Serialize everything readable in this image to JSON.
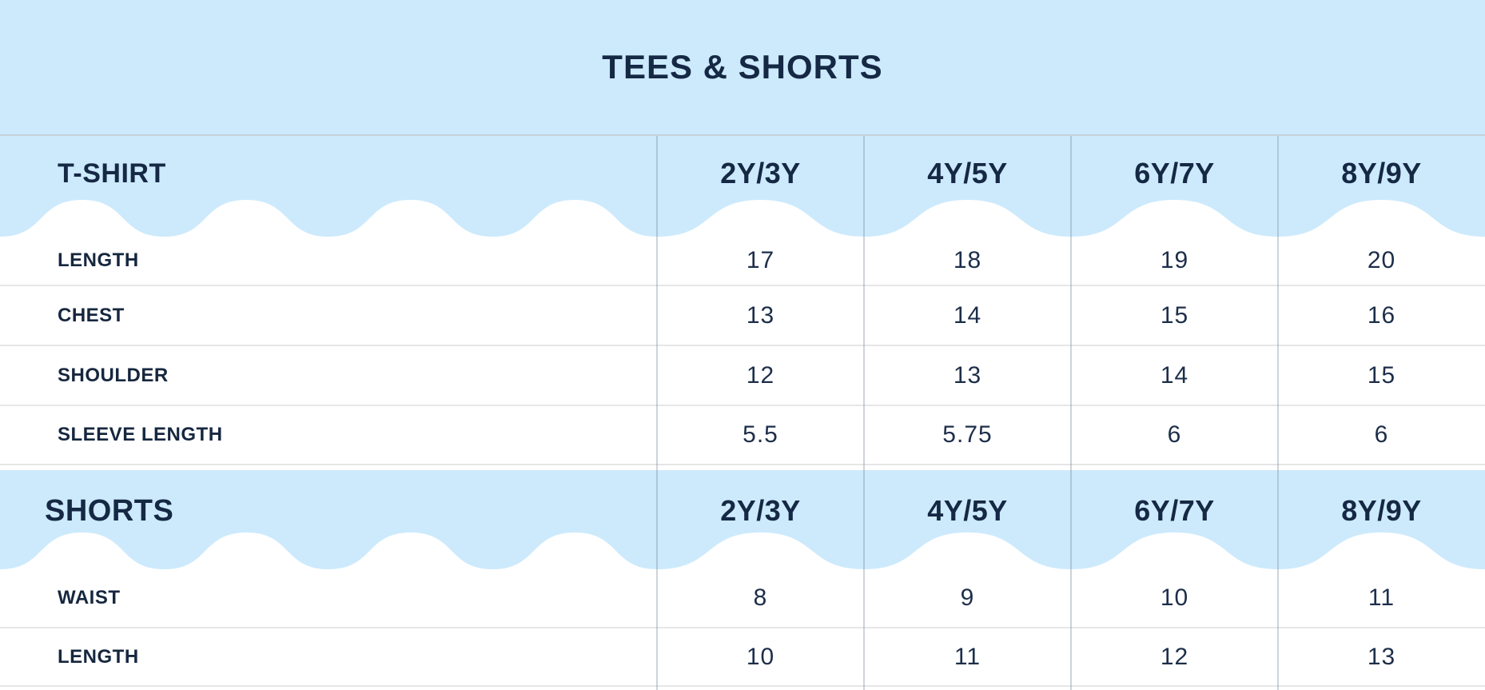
{
  "title": "TEES & SHORTS",
  "colors": {
    "band_blue": "#cdeafc",
    "text_navy": "#152844",
    "row_line_gray": "#e6e6e6",
    "divider_gray": "#7d8e9e"
  },
  "sections": [
    {
      "name": "T-SHIRT",
      "columns": [
        "2Y/3Y",
        "4Y/5Y",
        "6Y/7Y",
        "8Y/9Y"
      ],
      "rows": [
        {
          "label": "LENGTH",
          "values": [
            "17",
            "18",
            "19",
            "20"
          ]
        },
        {
          "label": "CHEST",
          "values": [
            "13",
            "14",
            "15",
            "16"
          ]
        },
        {
          "label": "SHOULDER",
          "values": [
            "12",
            "13",
            "14",
            "15"
          ]
        },
        {
          "label": "SLEEVE LENGTH",
          "values": [
            "5.5",
            "5.75",
            "6",
            "6"
          ]
        }
      ]
    },
    {
      "name": "SHORTS",
      "columns": [
        "2Y/3Y",
        "4Y/5Y",
        "6Y/7Y",
        "8Y/9Y"
      ],
      "rows": [
        {
          "label": "WAIST",
          "values": [
            "8",
            "9",
            "10",
            "11"
          ]
        },
        {
          "label": "LENGTH",
          "values": [
            "10",
            "11",
            "12",
            "13"
          ]
        }
      ]
    }
  ],
  "chart_data": {
    "type": "table",
    "title": "TEES & SHORTS",
    "tables": [
      {
        "name": "T-SHIRT",
        "columns": [
          "2Y/3Y",
          "4Y/5Y",
          "6Y/7Y",
          "8Y/9Y"
        ],
        "rows": [
          {
            "label": "LENGTH",
            "values": [
              17,
              18,
              19,
              20
            ]
          },
          {
            "label": "CHEST",
            "values": [
              13,
              14,
              15,
              16
            ]
          },
          {
            "label": "SHOULDER",
            "values": [
              12,
              13,
              14,
              15
            ]
          },
          {
            "label": "SLEEVE LENGTH",
            "values": [
              5.5,
              5.75,
              6,
              6
            ]
          }
        ]
      },
      {
        "name": "SHORTS",
        "columns": [
          "2Y/3Y",
          "4Y/5Y",
          "6Y/7Y",
          "8Y/9Y"
        ],
        "rows": [
          {
            "label": "WAIST",
            "values": [
              8,
              9,
              10,
              11
            ]
          },
          {
            "label": "LENGTH",
            "values": [
              10,
              11,
              12,
              13
            ]
          }
        ]
      }
    ]
  }
}
